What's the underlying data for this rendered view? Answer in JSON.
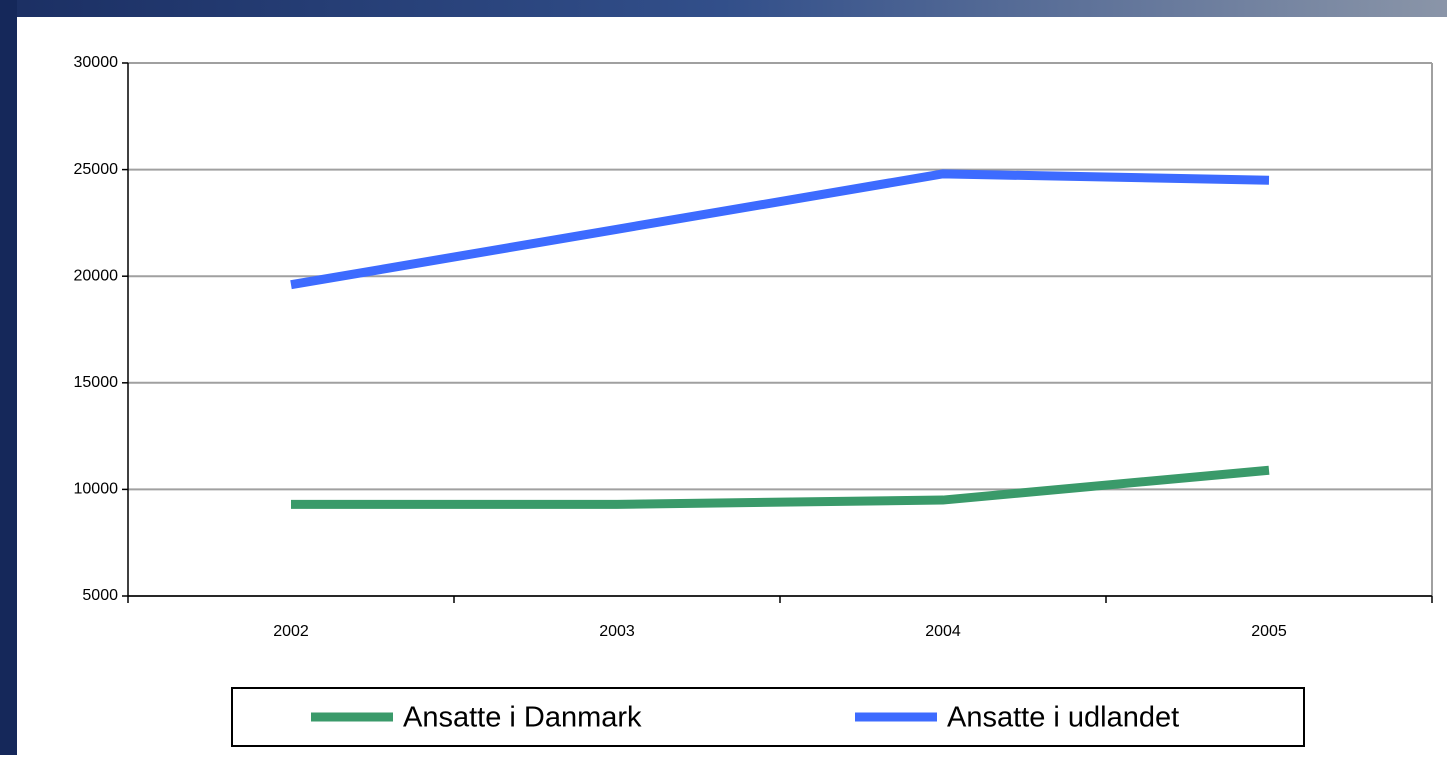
{
  "chart_data": {
    "type": "line",
    "categories": [
      "2002",
      "2003",
      "2004",
      "2005"
    ],
    "series": [
      {
        "name": "Ansatte i Danmark",
        "color": "#3a9a6a",
        "values": [
          9300,
          9300,
          9500,
          10900
        ]
      },
      {
        "name": "Ansatte i udlandet",
        "color": "#3d6bff",
        "values": [
          19600,
          22200,
          24800,
          24500
        ]
      }
    ],
    "ylim": [
      5000,
      30000
    ],
    "yticks": [
      5000,
      10000,
      15000,
      20000,
      25000,
      30000
    ],
    "grid": true,
    "legend": "bottom"
  }
}
